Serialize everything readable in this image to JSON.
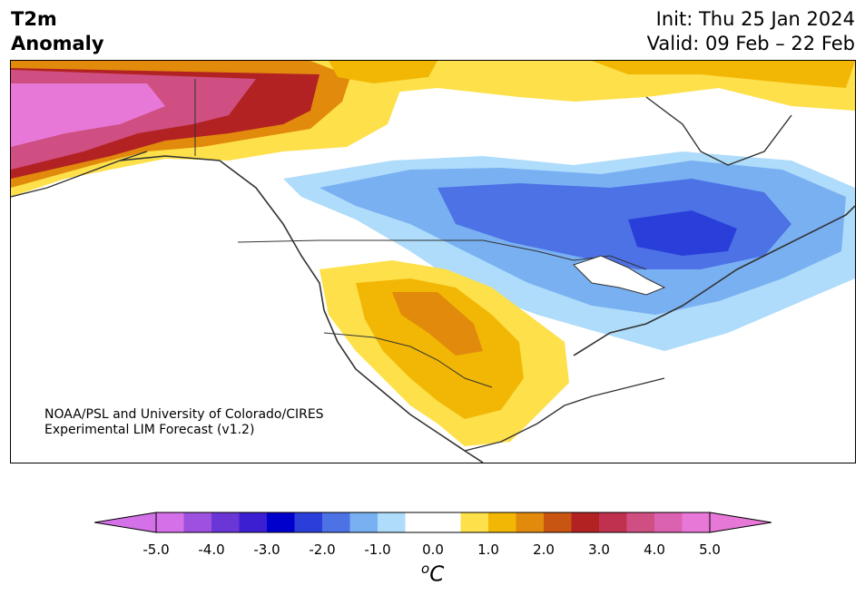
{
  "header": {
    "variable": "T2m",
    "variable_type": "Anomaly",
    "init": "Init: Thu 25 Jan 2024",
    "valid": "Valid: 09 Feb – 22 Feb"
  },
  "credit": {
    "line1": "NOAA/PSL and University of Colorado/CIRES",
    "line2": "Experimental LIM Forecast (v1.2)"
  },
  "colorbar": {
    "unit_base": "C",
    "unit_sup": "o",
    "ticks": [
      "-5.0",
      "-4.0",
      "-3.0",
      "-2.0",
      "-1.0",
      "0.0",
      "1.0",
      "2.0",
      "3.0",
      "4.0",
      "5.0"
    ],
    "colors": [
      "#d471e8",
      "#9e50de",
      "#6b36d6",
      "#3c1fd0",
      "#0000cd",
      "#2a3fd9",
      "#4c72e6",
      "#79b0f2",
      "#aedcfa",
      "#ffffff",
      "#ffffff",
      "#fde04a",
      "#f2b705",
      "#e18a0c",
      "#c95512",
      "#b22222",
      "#c0314f",
      "#cf4f82",
      "#da62b0",
      "#e878d8"
    ],
    "min": -5.0,
    "max": 5.0
  },
  "palette": {
    "pink": "#e878d8",
    "magenta": "#cf4f82",
    "crimson": "#c0314f",
    "red": "#b22222",
    "darkorange": "#c95512",
    "orange": "#e18a0c",
    "gold": "#f2b705",
    "yellow": "#fde04a",
    "lightblue": "#aedcfa",
    "skyblue": "#79b0f2",
    "blue": "#4c72e6",
    "royal": "#2a3fd9",
    "coast": "#333333"
  }
}
